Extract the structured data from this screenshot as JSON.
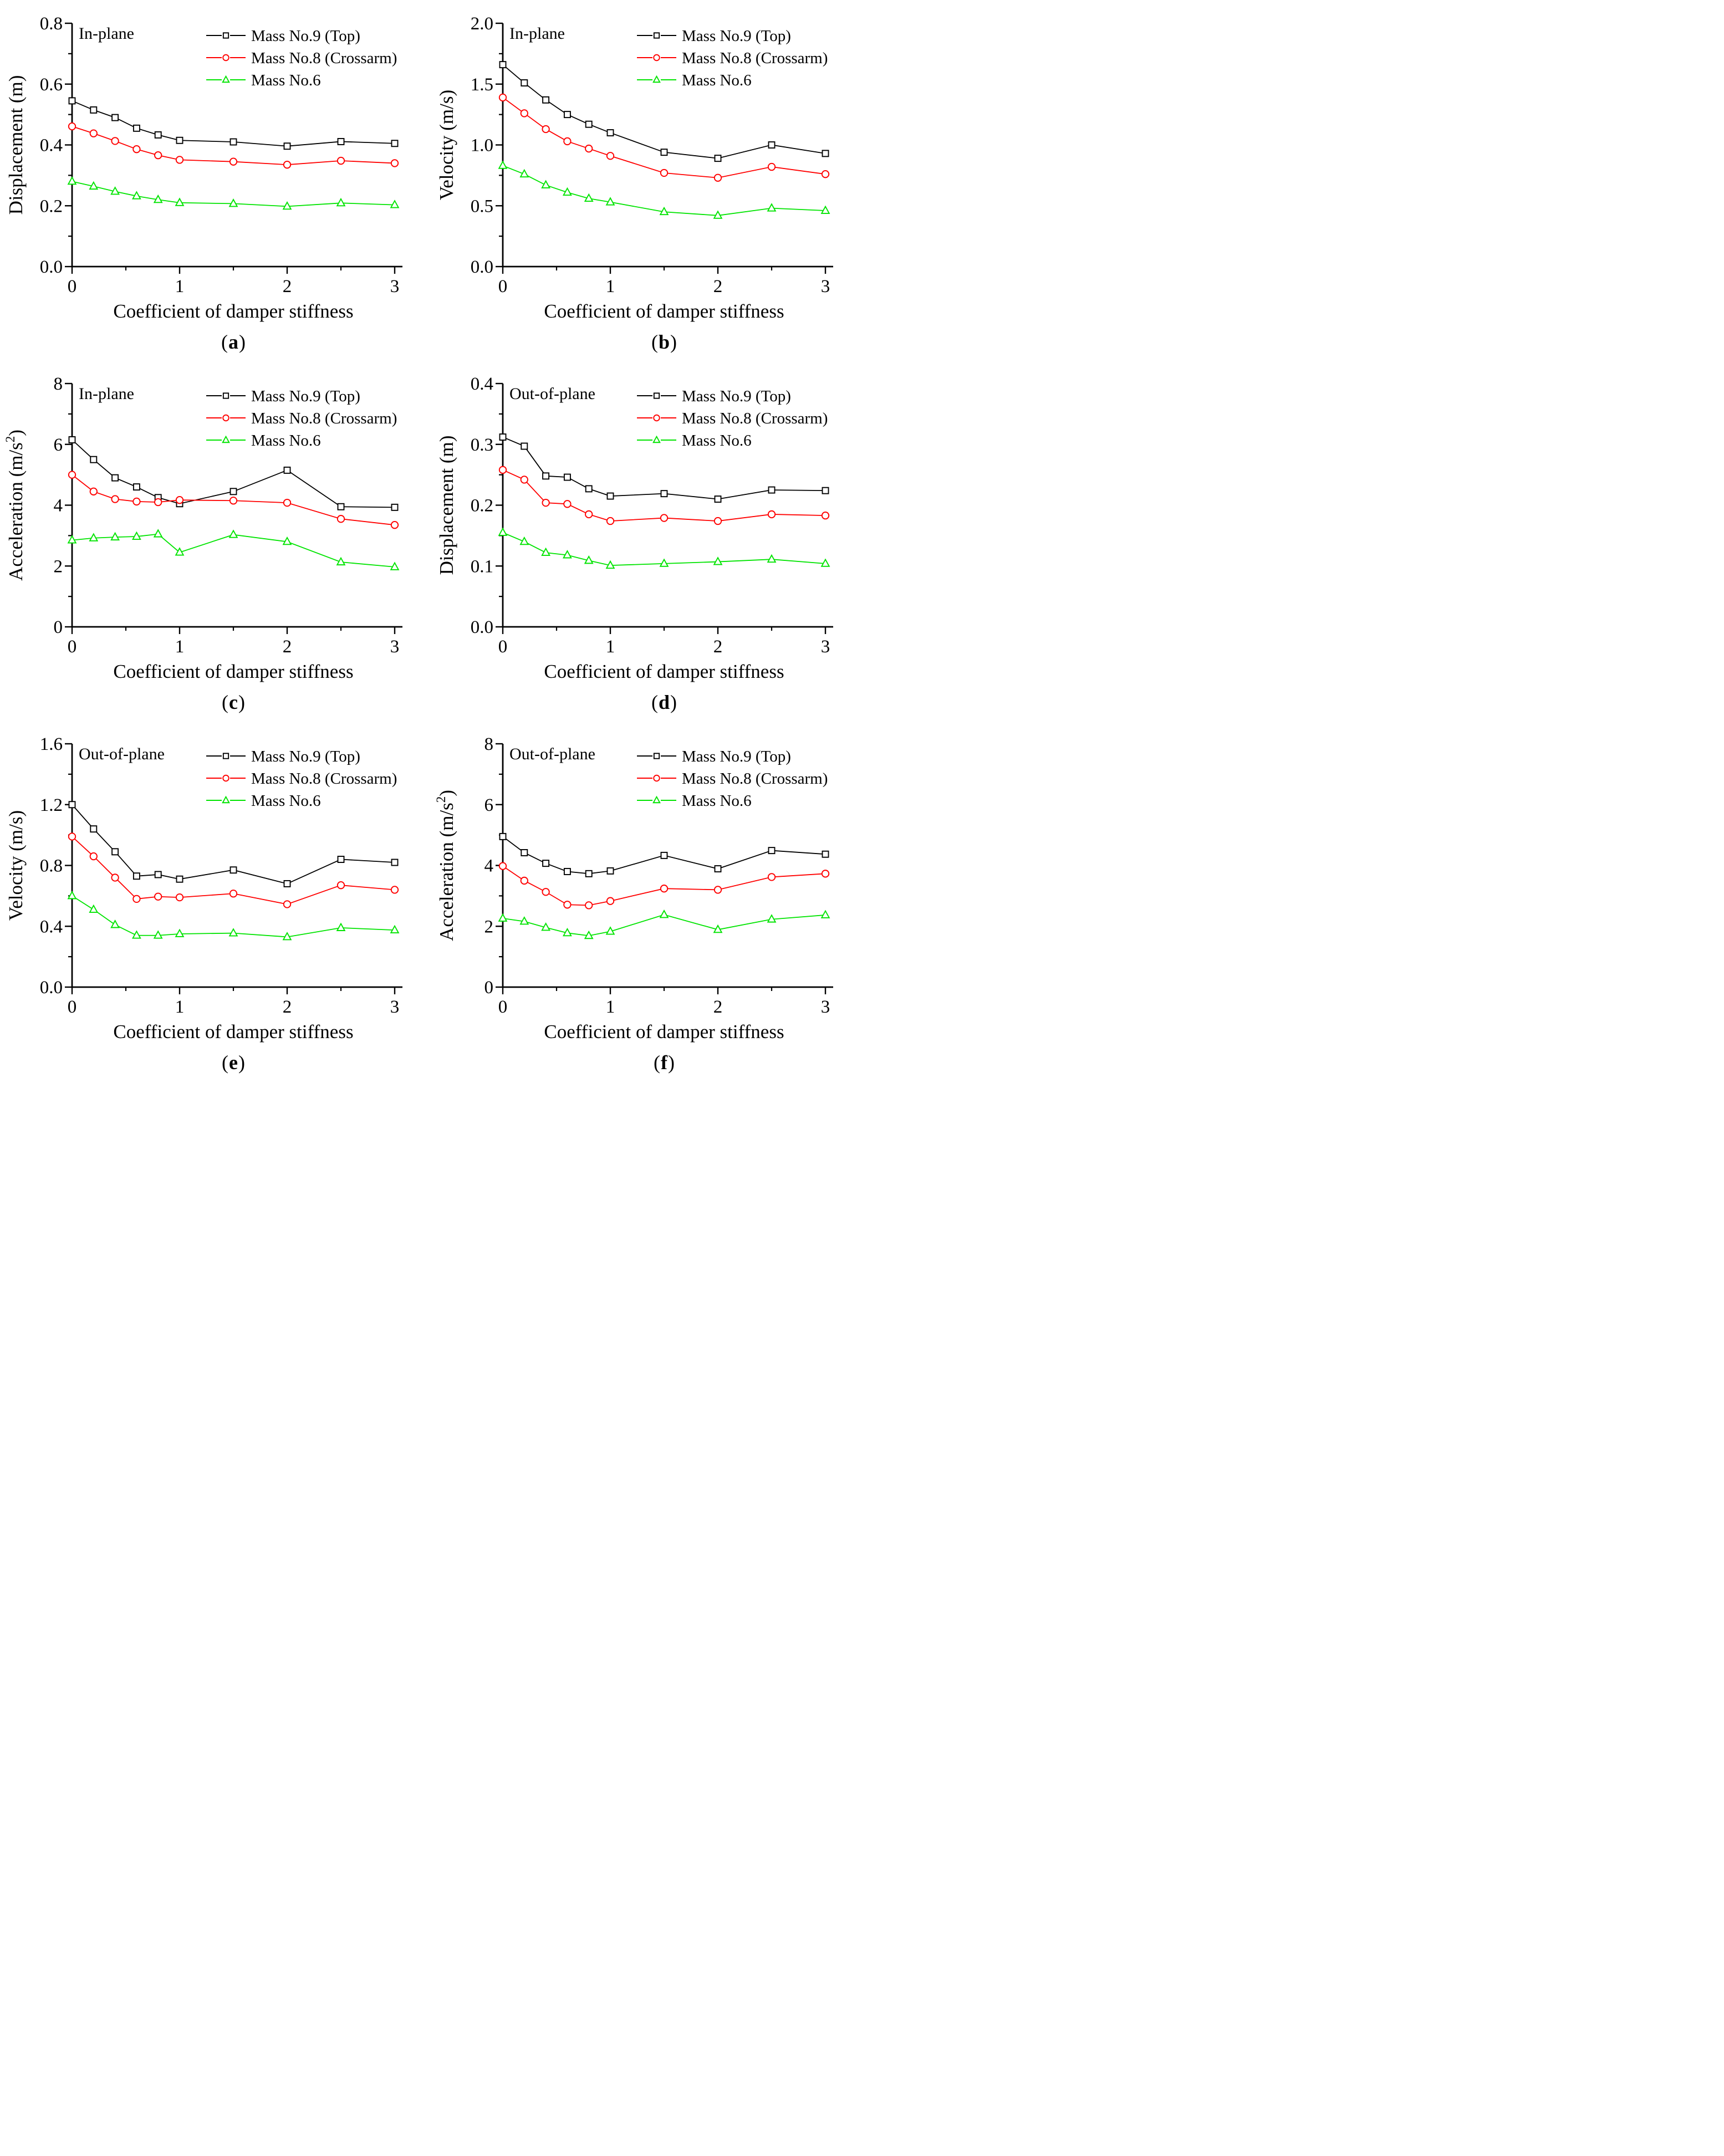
{
  "punct": {
    "open": "(",
    "close": ")"
  },
  "chart_data": [
    {
      "id": "a",
      "caption": "a",
      "type": "line",
      "annotation": "In-plane",
      "xlabel": "Coefficient of damper stiffness",
      "ylabel": "Displacement (m)",
      "xlim": [
        0,
        3
      ],
      "ylim": [
        0,
        0.8
      ],
      "xticks": [
        0,
        1,
        2,
        3
      ],
      "xtick_labels": [
        "0",
        "1",
        "2",
        "3"
      ],
      "yticks": [
        0,
        0.2,
        0.4,
        0.6,
        0.8
      ],
      "ytick_labels": [
        "0.0",
        "0.2",
        "0.4",
        "0.6",
        "0.8"
      ],
      "grid": false,
      "legend_position": "inside-top-right",
      "x": [
        0,
        0.2,
        0.4,
        0.6,
        0.8,
        1,
        1.5,
        2,
        2.5,
        3
      ],
      "series": [
        {
          "name": "Mass No.9 (Top)",
          "color": "#000000",
          "marker": "square",
          "values": [
            0.545,
            0.515,
            0.49,
            0.455,
            0.433,
            0.415,
            0.41,
            0.396,
            0.411,
            0.405
          ]
        },
        {
          "name": "Mass No.8 (Crossarm)",
          "color": "#ff0000",
          "marker": "circle",
          "values": [
            0.461,
            0.438,
            0.413,
            0.386,
            0.366,
            0.351,
            0.345,
            0.335,
            0.348,
            0.34
          ]
        },
        {
          "name": "Mass No.6",
          "color": "#00e400",
          "marker": "triangle",
          "values": [
            0.28,
            0.264,
            0.247,
            0.232,
            0.22,
            0.21,
            0.207,
            0.198,
            0.209,
            0.203
          ]
        }
      ]
    },
    {
      "id": "b",
      "caption": "b",
      "type": "line",
      "annotation": "In-plane",
      "xlabel": "Coefficient of damper stiffness",
      "ylabel": "Velocity (m/s)",
      "xlim": [
        0,
        3
      ],
      "ylim": [
        0,
        2.0
      ],
      "xticks": [
        0,
        1,
        2,
        3
      ],
      "xtick_labels": [
        "0",
        "1",
        "2",
        "3"
      ],
      "yticks": [
        0,
        0.5,
        1.0,
        1.5,
        2.0
      ],
      "ytick_labels": [
        "0.0",
        "0.5",
        "1.0",
        "1.5",
        "2.0"
      ],
      "grid": false,
      "legend_position": "inside-top-right",
      "x": [
        0,
        0.2,
        0.4,
        0.6,
        0.8,
        1,
        1.5,
        2,
        2.5,
        3
      ],
      "series": [
        {
          "name": "Mass No.9 (Top)",
          "color": "#000000",
          "marker": "square",
          "values": [
            1.66,
            1.51,
            1.37,
            1.25,
            1.17,
            1.1,
            0.94,
            0.89,
            1.0,
            0.93
          ]
        },
        {
          "name": "Mass No.8 (Crossarm)",
          "color": "#ff0000",
          "marker": "circle",
          "values": [
            1.39,
            1.26,
            1.13,
            1.03,
            0.97,
            0.91,
            0.77,
            0.73,
            0.82,
            0.76
          ]
        },
        {
          "name": "Mass No.6",
          "color": "#00e400",
          "marker": "triangle",
          "values": [
            0.83,
            0.76,
            0.67,
            0.61,
            0.56,
            0.53,
            0.45,
            0.42,
            0.48,
            0.46
          ]
        }
      ]
    },
    {
      "id": "c",
      "caption": "c",
      "type": "line",
      "annotation": "In-plane",
      "xlabel": "Coefficient of damper stiffness",
      "ylabel": "Acceleration (m/s²)",
      "xlim": [
        0,
        3
      ],
      "ylim": [
        0,
        8
      ],
      "xticks": [
        0,
        1,
        2,
        3
      ],
      "xtick_labels": [
        "0",
        "1",
        "2",
        "3"
      ],
      "yticks": [
        0,
        2,
        4,
        6,
        8
      ],
      "ytick_labels": [
        "0",
        "2",
        "4",
        "6",
        "8"
      ],
      "grid": false,
      "legend_position": "inside-top-right",
      "x": [
        0,
        0.2,
        0.4,
        0.6,
        0.8,
        1,
        1.5,
        2,
        2.5,
        3
      ],
      "series": [
        {
          "name": "Mass No.9 (Top)",
          "color": "#000000",
          "marker": "square",
          "values": [
            6.15,
            5.5,
            4.9,
            4.6,
            4.25,
            4.05,
            4.45,
            5.15,
            3.95,
            3.93
          ]
        },
        {
          "name": "Mass No.8 (Crossarm)",
          "color": "#ff0000",
          "marker": "circle",
          "values": [
            5.0,
            4.45,
            4.2,
            4.12,
            4.1,
            4.17,
            4.15,
            4.08,
            3.55,
            3.35
          ]
        },
        {
          "name": "Mass No.6",
          "color": "#00e400",
          "marker": "triangle",
          "values": [
            2.85,
            2.92,
            2.95,
            2.97,
            3.05,
            2.45,
            3.03,
            2.8,
            2.13,
            1.97
          ]
        }
      ]
    },
    {
      "id": "d",
      "caption": "d",
      "type": "line",
      "annotation": "Out-of-plane",
      "xlabel": "Coefficient of damper stiffness",
      "ylabel": "Displacement (m)",
      "xlim": [
        0,
        3
      ],
      "ylim": [
        0,
        0.4
      ],
      "xticks": [
        0,
        1,
        2,
        3
      ],
      "xtick_labels": [
        "0",
        "1",
        "2",
        "3"
      ],
      "yticks": [
        0,
        0.1,
        0.2,
        0.3,
        0.4
      ],
      "ytick_labels": [
        "0.0",
        "0.1",
        "0.2",
        "0.3",
        "0.4"
      ],
      "grid": false,
      "legend_position": "inside-top-right",
      "x": [
        0,
        0.2,
        0.4,
        0.6,
        0.8,
        1,
        1.5,
        2,
        2.5,
        3
      ],
      "series": [
        {
          "name": "Mass No.9 (Top)",
          "color": "#000000",
          "marker": "square",
          "values": [
            0.312,
            0.297,
            0.248,
            0.246,
            0.227,
            0.215,
            0.219,
            0.21,
            0.225,
            0.224
          ]
        },
        {
          "name": "Mass No.8 (Crossarm)",
          "color": "#ff0000",
          "marker": "circle",
          "values": [
            0.258,
            0.242,
            0.204,
            0.202,
            0.185,
            0.174,
            0.179,
            0.174,
            0.185,
            0.183
          ]
        },
        {
          "name": "Mass No.6",
          "color": "#00e400",
          "marker": "triangle",
          "values": [
            0.155,
            0.14,
            0.122,
            0.118,
            0.109,
            0.101,
            0.104,
            0.107,
            0.111,
            0.104
          ]
        }
      ]
    },
    {
      "id": "e",
      "caption": "e",
      "type": "line",
      "annotation": "Out-of-plane",
      "xlabel": "Coefficient of damper stiffness",
      "ylabel": "Velocity (m/s)",
      "xlim": [
        0,
        3
      ],
      "ylim": [
        0,
        1.6
      ],
      "xticks": [
        0,
        1,
        2,
        3
      ],
      "xtick_labels": [
        "0",
        "1",
        "2",
        "3"
      ],
      "yticks": [
        0,
        0.4,
        0.8,
        1.2,
        1.6
      ],
      "ytick_labels": [
        "0.0",
        "0.4",
        "0.8",
        "1.2",
        "1.6"
      ],
      "grid": false,
      "legend_position": "inside-top-right",
      "x": [
        0,
        0.2,
        0.4,
        0.6,
        0.8,
        1,
        1.5,
        2,
        2.5,
        3
      ],
      "series": [
        {
          "name": "Mass No.9 (Top)",
          "color": "#000000",
          "marker": "square",
          "values": [
            1.2,
            1.04,
            0.89,
            0.73,
            0.74,
            0.71,
            0.77,
            0.68,
            0.84,
            0.82
          ]
        },
        {
          "name": "Mass No.8 (Crossarm)",
          "color": "#ff0000",
          "marker": "circle",
          "values": [
            0.99,
            0.86,
            0.72,
            0.58,
            0.595,
            0.59,
            0.615,
            0.545,
            0.67,
            0.64
          ]
        },
        {
          "name": "Mass No.6",
          "color": "#00e400",
          "marker": "triangle",
          "values": [
            0.6,
            0.51,
            0.41,
            0.34,
            0.34,
            0.35,
            0.355,
            0.33,
            0.39,
            0.375
          ]
        }
      ]
    },
    {
      "id": "f",
      "caption": "f",
      "type": "line",
      "annotation": "Out-of-plane",
      "xlabel": "Coefficient of damper stiffness",
      "ylabel": "Acceleration (m/s²)",
      "xlim": [
        0,
        3
      ],
      "ylim": [
        0,
        8
      ],
      "xticks": [
        0,
        1,
        2,
        3
      ],
      "xtick_labels": [
        "0",
        "1",
        "2",
        "3"
      ],
      "yticks": [
        0,
        2,
        4,
        6,
        8
      ],
      "ytick_labels": [
        "0",
        "2",
        "4",
        "6",
        "8"
      ],
      "grid": false,
      "legend_position": "inside-top-right",
      "x": [
        0,
        0.2,
        0.4,
        0.6,
        0.8,
        1,
        1.5,
        2,
        2.5,
        3
      ],
      "series": [
        {
          "name": "Mass No.9 (Top)",
          "color": "#000000",
          "marker": "square",
          "values": [
            4.95,
            4.42,
            4.07,
            3.8,
            3.73,
            3.82,
            4.33,
            3.89,
            4.49,
            4.37
          ]
        },
        {
          "name": "Mass No.8 (Crossarm)",
          "color": "#ff0000",
          "marker": "circle",
          "values": [
            3.98,
            3.5,
            3.13,
            2.71,
            2.69,
            2.83,
            3.24,
            3.2,
            3.62,
            3.73
          ]
        },
        {
          "name": "Mass No.6",
          "color": "#00e400",
          "marker": "triangle",
          "values": [
            2.26,
            2.16,
            1.96,
            1.78,
            1.69,
            1.83,
            2.38,
            1.89,
            2.23,
            2.37
          ]
        }
      ]
    }
  ]
}
